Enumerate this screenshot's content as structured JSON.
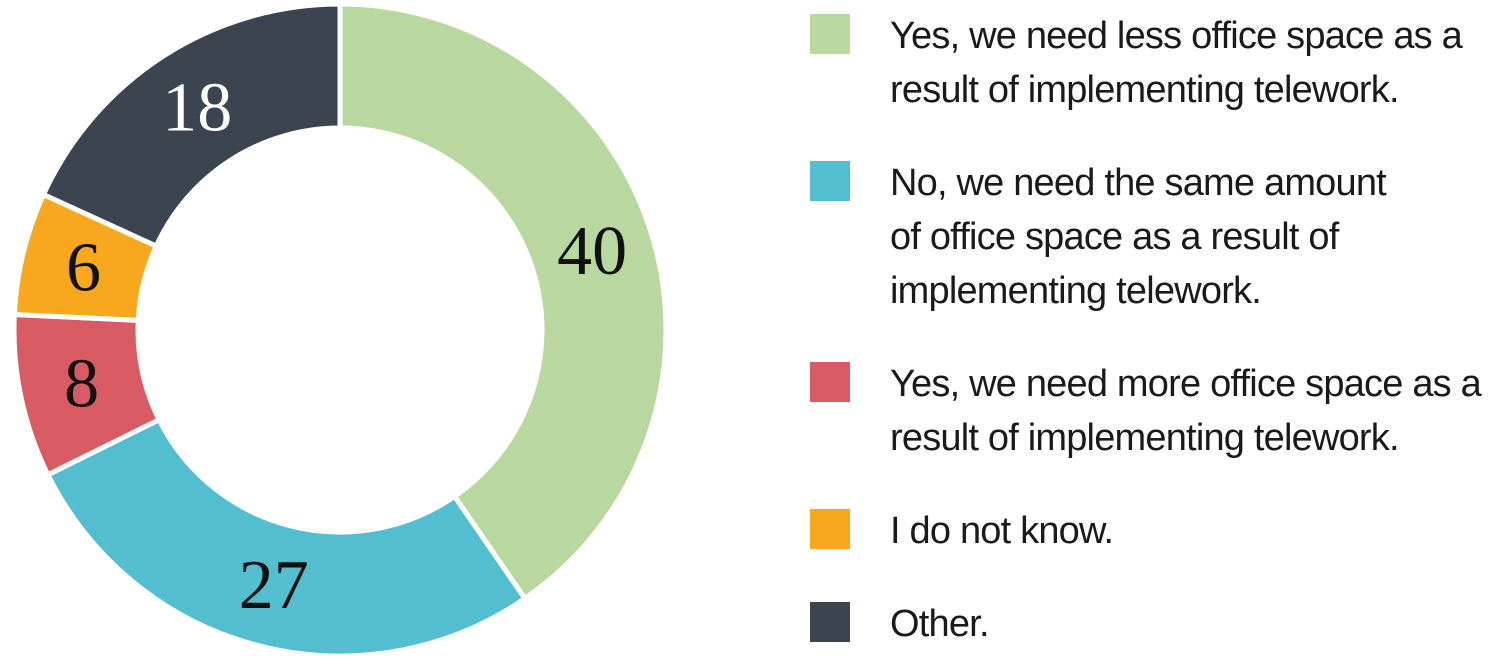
{
  "chart_data": {
    "type": "pie",
    "variant": "donut",
    "title": "",
    "start_angle_deg": 0,
    "direction": "clockwise",
    "donut_hole_ratio": 0.62,
    "legend_position": "right",
    "gap_color": "#ffffff",
    "segments": [
      {
        "label": "Yes, we need less office space as a result of implementing telework.",
        "value": 40,
        "color": "#b9d8a0",
        "value_label_color": "#111111"
      },
      {
        "label": "No, we need the same amount of office space as a result of implementing telework.",
        "value": 27,
        "color": "#53bed0",
        "value_label_color": "#111111"
      },
      {
        "label": "Yes, we need more office space as a result of implementing telework.",
        "value": 8,
        "color": "#d85a62",
        "value_label_color": "#111111"
      },
      {
        "label": "I do not know.",
        "value": 6,
        "color": "#f8a81c",
        "value_label_color": "#111111"
      },
      {
        "label": "Other.",
        "value": 18,
        "color": "#3c4450",
        "value_label_color": "#ffffff"
      }
    ]
  },
  "legend": {
    "items": [
      {
        "text": "Yes, we need less office space as a\nresult of implementing telework.",
        "color": "#b9d8a0"
      },
      {
        "text": "No, we need the same amount\nof office space as a result of\nimplementing telework.",
        "color": "#53bed0"
      },
      {
        "text": "Yes, we need more office space as a\nresult of implementing telework.",
        "color": "#d85a62"
      },
      {
        "text": "I do not know.",
        "color": "#f8a81c"
      },
      {
        "text": "Other.",
        "color": "#3c4450"
      }
    ]
  }
}
